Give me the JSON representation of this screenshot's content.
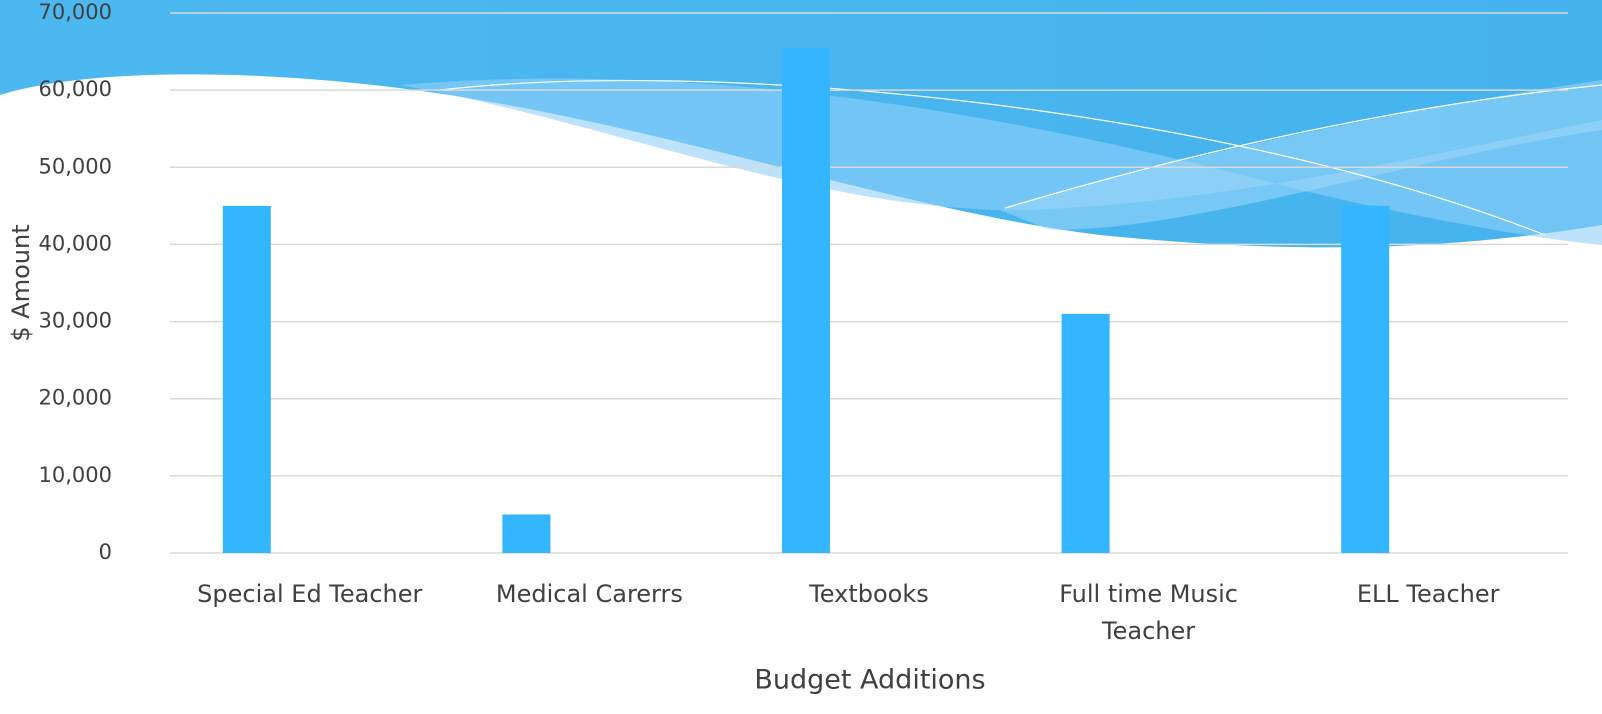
{
  "chart_data": {
    "type": "bar",
    "categories": [
      "Special Ed Teacher",
      "Medical Carerrs",
      "Textbooks",
      "Full time Music Teacher",
      "ELL Teacher"
    ],
    "values": [
      45000,
      5000,
      65500,
      31000,
      45000
    ],
    "color": "#33b5ff",
    "ylim": [
      0,
      70000
    ],
    "yticks": [
      0,
      {
        "value": 10000,
        "label": "10,000"
      },
      {
        "value": 20000,
        "label": "20,000"
      },
      {
        "value": 30000,
        "label": "30,000"
      },
      {
        "value": 40000,
        "label": "40,000"
      },
      {
        "value": 50000,
        "label": "50,000"
      },
      {
        "value": 60000,
        "label": "60,000"
      },
      {
        "value": 70000,
        "label": "70,000"
      }
    ],
    "grid": true,
    "y_label": "$ Amount",
    "x_label": "Budget Additions"
  }
}
